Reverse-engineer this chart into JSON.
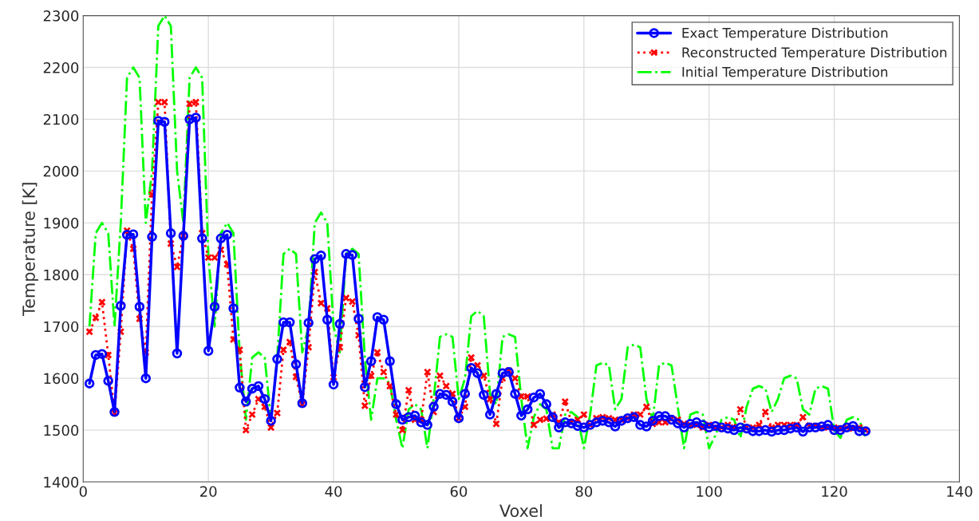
{
  "chart_data": {
    "type": "line",
    "xlabel": "Voxel",
    "ylabel": "Temperature [K]",
    "x": [
      1,
      2,
      3,
      4,
      5,
      6,
      7,
      8,
      9,
      10,
      11,
      12,
      13,
      14,
      15,
      16,
      17,
      18,
      19,
      20,
      21,
      22,
      23,
      24,
      25,
      26,
      27,
      28,
      29,
      30,
      31,
      32,
      33,
      34,
      35,
      36,
      37,
      38,
      39,
      40,
      41,
      42,
      43,
      44,
      45,
      46,
      47,
      48,
      49,
      50,
      51,
      52,
      53,
      54,
      55,
      56,
      57,
      58,
      59,
      60,
      61,
      62,
      63,
      64,
      65,
      66,
      67,
      68,
      69,
      70,
      71,
      72,
      73,
      74,
      75,
      76,
      77,
      78,
      79,
      80,
      81,
      82,
      83,
      84,
      85,
      86,
      87,
      88,
      89,
      90,
      91,
      92,
      93,
      94,
      95,
      96,
      97,
      98,
      99,
      100,
      101,
      102,
      103,
      104,
      105,
      106,
      107,
      108,
      109,
      110,
      111,
      112,
      113,
      114,
      115,
      116,
      117,
      118,
      119,
      120,
      121,
      122,
      123,
      124,
      125
    ],
    "series": [
      {
        "name": "Exact Temperature Distribution",
        "color": "#0000ff",
        "marker": "circle",
        "line_style": "solid",
        "values": [
          1590,
          1645,
          1647,
          1595,
          1535,
          1740,
          1877,
          1878,
          1738,
          1600,
          1873,
          2097,
          2095,
          1880,
          1648,
          1875,
          2100,
          2103,
          1870,
          1653,
          1738,
          1870,
          1877,
          1735,
          1582,
          1555,
          1580,
          1585,
          1560,
          1518,
          1637,
          1708,
          1708,
          1627,
          1552,
          1707,
          1830,
          1837,
          1713,
          1588,
          1705,
          1840,
          1838,
          1715,
          1583,
          1633,
          1718,
          1713,
          1633,
          1550,
          1520,
          1525,
          1528,
          1515,
          1510,
          1545,
          1570,
          1568,
          1555,
          1523,
          1570,
          1620,
          1610,
          1568,
          1530,
          1570,
          1610,
          1612,
          1570,
          1528,
          1540,
          1563,
          1570,
          1550,
          1525,
          1505,
          1515,
          1513,
          1508,
          1505,
          1510,
          1515,
          1518,
          1515,
          1507,
          1518,
          1523,
          1525,
          1510,
          1507,
          1518,
          1527,
          1527,
          1520,
          1513,
          1505,
          1512,
          1515,
          1510,
          1505,
          1508,
          1505,
          1503,
          1500,
          1505,
          1503,
          1498,
          1498,
          1500,
          1497,
          1500,
          1500,
          1503,
          1505,
          1497,
          1505,
          1505,
          1507,
          1510,
          1500,
          1500,
          1505,
          1508,
          1498,
          1498
        ]
      },
      {
        "name": "Reconstructed Temperature Distribution",
        "color": "#ff0000",
        "marker": "cross",
        "line_style": "dotted",
        "values": [
          1690,
          1717,
          1747,
          1645,
          1533,
          1690,
          1885,
          1850,
          1715,
          1650,
          1955,
          2133,
          2133,
          1860,
          1815,
          1875,
          2130,
          2133,
          1880,
          1833,
          1833,
          1848,
          1820,
          1675,
          1655,
          1500,
          1530,
          1560,
          1545,
          1505,
          1533,
          1655,
          1670,
          1603,
          1550,
          1660,
          1805,
          1745,
          1735,
          1602,
          1660,
          1755,
          1748,
          1683,
          1547,
          1605,
          1650,
          1612,
          1585,
          1530,
          1500,
          1577,
          1520,
          1520,
          1612,
          1535,
          1605,
          1585,
          1570,
          1523,
          1545,
          1640,
          1625,
          1605,
          1560,
          1512,
          1600,
          1615,
          1600,
          1565,
          1565,
          1510,
          1520,
          1522,
          1530,
          1515,
          1555,
          1515,
          1520,
          1530,
          1510,
          1523,
          1525,
          1523,
          1520,
          1520,
          1523,
          1530,
          1530,
          1545,
          1512,
          1515,
          1515,
          1522,
          1520,
          1512,
          1510,
          1510,
          1505,
          1510,
          1505,
          1505,
          1510,
          1505,
          1540,
          1505,
          1505,
          1510,
          1535,
          1505,
          1510,
          1510,
          1510,
          1510,
          1525,
          1508,
          1508,
          1505,
          1505,
          1505,
          1503,
          1505,
          1503,
          1505,
          1500
        ]
      },
      {
        "name": "Initial Temperature Distribution",
        "color": "#00ff00",
        "marker": "none",
        "line_style": "dashdot",
        "values": [
          1700,
          1880,
          1900,
          1880,
          1700,
          1900,
          2180,
          2200,
          2180,
          1900,
          2000,
          2280,
          2300,
          2280,
          2000,
          1900,
          2180,
          2200,
          2180,
          1835,
          1700,
          1880,
          1900,
          1880,
          1650,
          1520,
          1640,
          1650,
          1640,
          1520,
          1640,
          1840,
          1850,
          1840,
          1650,
          1700,
          1900,
          1920,
          1900,
          1700,
          1650,
          1840,
          1850,
          1840,
          1640,
          1520,
          1600,
          1600,
          1590,
          1520,
          1465,
          1540,
          1550,
          1540,
          1465,
          1560,
          1680,
          1685,
          1680,
          1560,
          1600,
          1720,
          1730,
          1720,
          1570,
          1550,
          1680,
          1685,
          1680,
          1560,
          1465,
          1525,
          1550,
          1540,
          1465,
          1465,
          1530,
          1535,
          1525,
          1465,
          1530,
          1625,
          1630,
          1625,
          1540,
          1560,
          1660,
          1665,
          1660,
          1560,
          1520,
          1625,
          1630,
          1625,
          1545,
          1465,
          1530,
          1535,
          1530,
          1465,
          1490,
          1520,
          1525,
          1520,
          1485,
          1545,
          1580,
          1585,
          1580,
          1535,
          1560,
          1600,
          1605,
          1600,
          1540,
          1530,
          1580,
          1585,
          1580,
          1500,
          1485,
          1520,
          1525,
          1520,
          1485
        ]
      }
    ],
    "xlim": [
      0,
      140
    ],
    "xticks": [
      0,
      20,
      40,
      60,
      80,
      100,
      120,
      140
    ],
    "ylim": [
      1400,
      2300
    ],
    "yticks": [
      1400,
      1500,
      1600,
      1700,
      1800,
      1900,
      2000,
      2100,
      2200,
      2300
    ],
    "grid": true,
    "legend": "top right"
  }
}
